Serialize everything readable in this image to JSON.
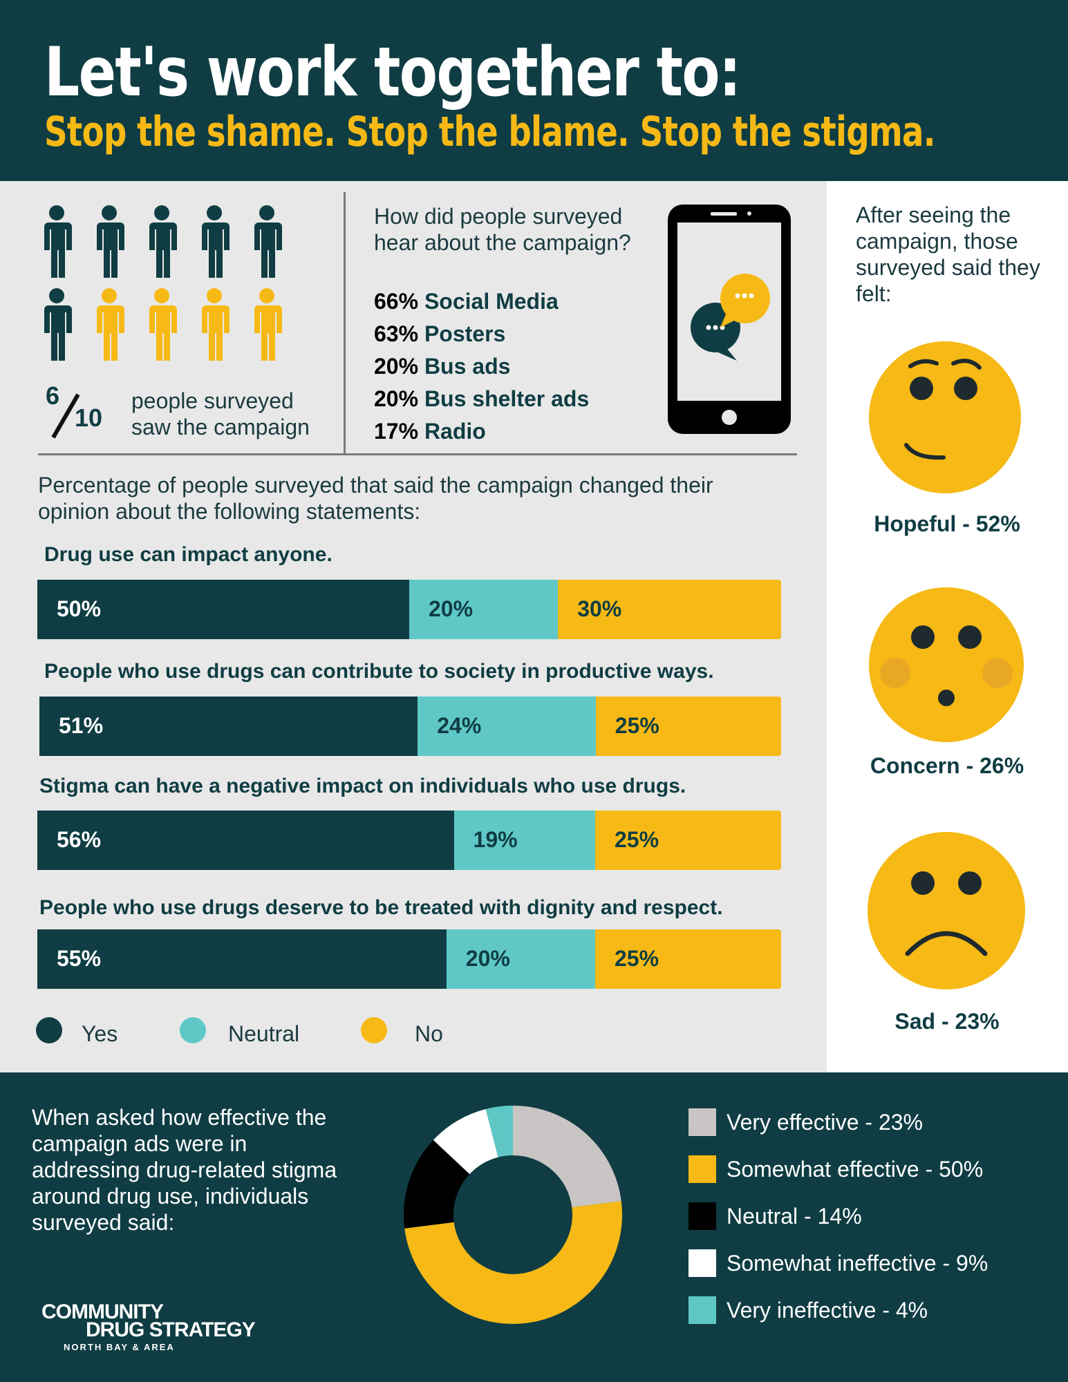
{
  "header": {
    "title": "Let's work together to:",
    "subtitle": "Stop the shame. Stop the blame. Stop the stigma."
  },
  "awareness": {
    "numerator": "6",
    "denominator": "10",
    "text": "people surveyed saw the campaign"
  },
  "channels": {
    "question": "How did people surveyed hear about the campaign?",
    "items": [
      {
        "pct": "66%",
        "label": "Social Media"
      },
      {
        "pct": "63%",
        "label": "Posters"
      },
      {
        "pct": "20%",
        "label": "Bus ads"
      },
      {
        "pct": "20%",
        "label": "Bus shelter ads"
      },
      {
        "pct": "17%",
        "label": "Radio"
      }
    ]
  },
  "feelings": {
    "question": "After seeing the campaign, those surveyed said they felt:",
    "items": [
      {
        "label": "Hopeful - 52%",
        "icon": "hopeful-face-icon"
      },
      {
        "label": "Concern - 26%",
        "icon": "concerned-face-icon"
      },
      {
        "label": "Sad - 23%",
        "icon": "sad-face-icon"
      }
    ]
  },
  "statements": {
    "intro": "Percentage of people surveyed that said the campaign changed their opinion about the following statements:",
    "items": [
      {
        "title": "Drug use can impact anyone.",
        "yes": 50,
        "neutral": 20,
        "no": 30,
        "yes_label": "50%",
        "neutral_label": "20%",
        "no_label": "30%"
      },
      {
        "title": "People who use drugs can contribute to society in productive ways.",
        "yes": 51,
        "neutral": 24,
        "no": 25,
        "yes_label": "51%",
        "neutral_label": "24%",
        "no_label": "25%"
      },
      {
        "title": "Stigma can have a negative impact on individuals who use drugs.",
        "yes": 56,
        "neutral": 19,
        "no": 25,
        "yes_label": "56%",
        "neutral_label": "19%",
        "no_label": "25%"
      },
      {
        "title": "People who use drugs deserve to be treated with dignity and respect.",
        "yes": 55,
        "neutral": 20,
        "no": 25,
        "yes_label": "55%",
        "neutral_label": "20%",
        "no_label": "25%"
      }
    ],
    "legend": {
      "yes": "Yes",
      "neutral": "Neutral",
      "no": "No"
    }
  },
  "effectiveness": {
    "question": "When asked how effective the campaign ads were in addressing drug-related stigma around drug use,  individuals surveyed said:",
    "items": [
      {
        "label": "Very effective - 23%",
        "value": 23,
        "color": "#c9c5c4"
      },
      {
        "label": "Somewhat effective - 50%",
        "value": 50,
        "color": "#f6b915"
      },
      {
        "label": "Neutral - 14%",
        "value": 14,
        "color": "#000000"
      },
      {
        "label": "Somewhat ineffective - 9%",
        "value": 9,
        "color": "#ffffff"
      },
      {
        "label": "Very ineffective - 4%",
        "value": 4,
        "color": "#5fc8c7"
      }
    ]
  },
  "logo": {
    "line1": "COMMUNITY",
    "line2": "DRUG STRATEGY",
    "line3": "NORTH BAY & AREA"
  },
  "colors": {
    "dark_teal": "#0f3d43",
    "yellow": "#f6b915",
    "light_teal": "#5fc8c7",
    "grey_bg": "#e8e8e8"
  }
}
